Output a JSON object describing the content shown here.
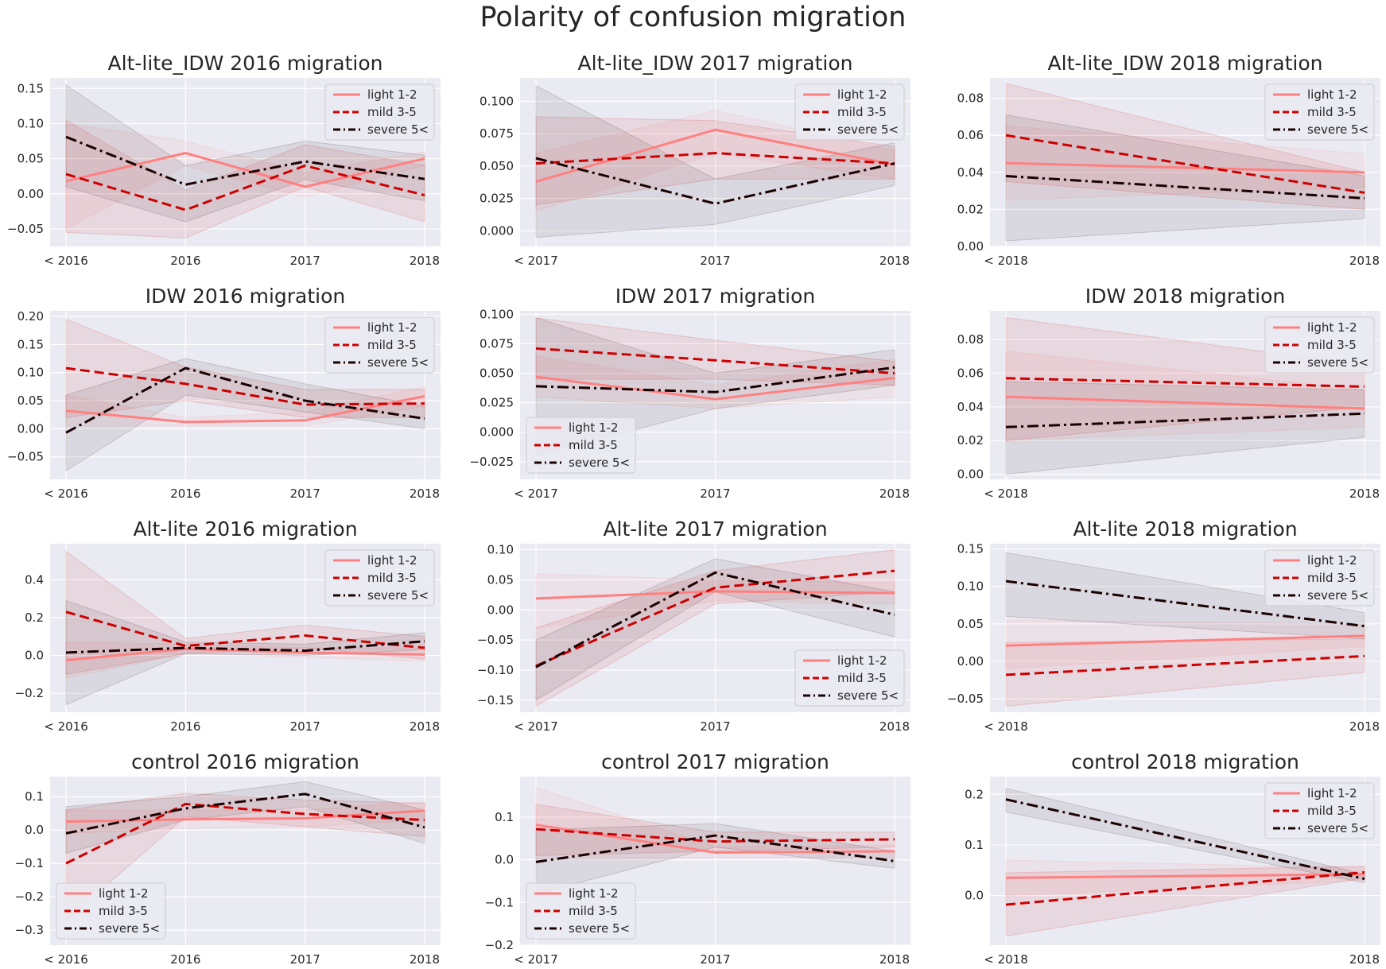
{
  "title": "Polarity of confusion migration",
  "legend_labels": [
    "light 1-2",
    "mild 3-5",
    "severe 5<"
  ],
  "series_styles": [
    {
      "name": "light 1-2",
      "color": "#ff8080",
      "dash": ""
    },
    {
      "name": "mild 3-5",
      "color": "#cc0000",
      "dash": "12,6"
    },
    {
      "name": "severe 5<",
      "color": "#1a0000",
      "dash": "14,5,3,5"
    }
  ],
  "chart_data": [
    {
      "type": "line",
      "title": "Alt-lite_IDW 2016 migration",
      "categories": [
        "< 2016",
        "2016",
        "2017",
        "2018"
      ],
      "ylim": [
        -0.075,
        0.165
      ],
      "yticks": [
        -0.05,
        0.0,
        0.05,
        0.1,
        0.15
      ],
      "ytick_labels": [
        "−0.05",
        "0.00",
        "0.05",
        "0.10",
        "0.15"
      ],
      "legend_pos": "top-right",
      "grid": true,
      "series": [
        {
          "name": "light 1-2",
          "values": [
            0.018,
            0.058,
            0.01,
            0.05
          ],
          "lower": [
            -0.05,
            0.04,
            -0.005,
            0.04
          ],
          "upper": [
            0.1,
            0.075,
            0.03,
            0.06
          ]
        },
        {
          "name": "mild 3-5",
          "values": [
            0.028,
            -0.023,
            0.04,
            -0.002
          ],
          "lower": [
            -0.055,
            -0.063,
            0.01,
            -0.04
          ],
          "upper": [
            0.105,
            0.005,
            0.07,
            0.04
          ]
        },
        {
          "name": "severe 5<",
          "values": [
            0.081,
            0.013,
            0.046,
            0.021
          ],
          "lower": [
            0.01,
            -0.04,
            0.02,
            -0.01
          ],
          "upper": [
            0.155,
            0.04,
            0.075,
            0.055
          ]
        }
      ]
    },
    {
      "type": "line",
      "title": "Alt-lite_IDW 2017 migration",
      "categories": [
        "< 2017",
        "2017",
        "2018"
      ],
      "ylim": [
        -0.012,
        0.118
      ],
      "yticks": [
        0.0,
        0.025,
        0.05,
        0.075,
        0.1
      ],
      "ytick_labels": [
        "0.000",
        "0.025",
        "0.050",
        "0.075",
        "0.100"
      ],
      "legend_pos": "top-right",
      "grid": true,
      "series": [
        {
          "name": "light 1-2",
          "values": [
            0.038,
            0.078,
            0.051
          ],
          "lower": [
            0.015,
            0.06,
            0.04
          ],
          "upper": [
            0.06,
            0.093,
            0.062
          ]
        },
        {
          "name": "mild 3-5",
          "values": [
            0.052,
            0.06,
            0.052
          ],
          "lower": [
            0.02,
            0.04,
            0.04
          ],
          "upper": [
            0.088,
            0.085,
            0.065
          ]
        },
        {
          "name": "severe 5<",
          "values": [
            0.056,
            0.021,
            0.052
          ],
          "lower": [
            -0.005,
            0.005,
            0.035
          ],
          "upper": [
            0.112,
            0.04,
            0.068
          ]
        }
      ]
    },
    {
      "type": "line",
      "title": "Alt-lite_IDW 2018 migration",
      "categories": [
        "< 2018",
        "2018"
      ],
      "ylim": [
        0.0,
        0.091
      ],
      "yticks": [
        0.0,
        0.02,
        0.04,
        0.06,
        0.08
      ],
      "ytick_labels": [
        "0.00",
        "0.02",
        "0.04",
        "0.06",
        "0.08"
      ],
      "legend_pos": "top-right",
      "grid": true,
      "series": [
        {
          "name": "light 1-2",
          "values": [
            0.045,
            0.04
          ],
          "lower": [
            0.025,
            0.032
          ],
          "upper": [
            0.065,
            0.05
          ]
        },
        {
          "name": "mild 3-5",
          "values": [
            0.06,
            0.029
          ],
          "lower": [
            0.035,
            0.02
          ],
          "upper": [
            0.088,
            0.04
          ]
        },
        {
          "name": "severe 5<",
          "values": [
            0.038,
            0.026
          ],
          "lower": [
            0.003,
            0.015
          ],
          "upper": [
            0.071,
            0.038
          ]
        }
      ]
    },
    {
      "type": "line",
      "title": "IDW 2016 migration",
      "categories": [
        "< 2016",
        "2016",
        "2017",
        "2018"
      ],
      "ylim": [
        -0.09,
        0.21
      ],
      "yticks": [
        -0.05,
        0.0,
        0.05,
        0.1,
        0.15,
        0.2
      ],
      "ytick_labels": [
        "−0.05",
        "0.00",
        "0.05",
        "0.10",
        "0.15",
        "0.20"
      ],
      "legend_pos": "top-right",
      "grid": true,
      "series": [
        {
          "name": "light 1-2",
          "values": [
            0.032,
            0.012,
            0.015,
            0.058
          ],
          "lower": [
            0.005,
            0.005,
            0.005,
            0.04
          ],
          "upper": [
            0.06,
            0.02,
            0.03,
            0.075
          ]
        },
        {
          "name": "mild 3-5",
          "values": [
            0.108,
            0.08,
            0.043,
            0.045
          ],
          "lower": [
            0.02,
            0.05,
            0.02,
            0.02
          ],
          "upper": [
            0.195,
            0.11,
            0.07,
            0.07
          ]
        },
        {
          "name": "severe 5<",
          "values": [
            -0.007,
            0.108,
            0.05,
            0.018
          ],
          "lower": [
            -0.075,
            0.06,
            0.03,
            0.0
          ],
          "upper": [
            0.06,
            0.125,
            0.08,
            0.04
          ]
        }
      ]
    },
    {
      "type": "line",
      "title": "IDW 2017 migration",
      "categories": [
        "< 2017",
        "2017",
        "2018"
      ],
      "ylim": [
        -0.04,
        0.103
      ],
      "yticks": [
        -0.025,
        0.0,
        0.025,
        0.05,
        0.075,
        0.1
      ],
      "ytick_labels": [
        "−0.025",
        "0.000",
        "0.025",
        "0.050",
        "0.075",
        "0.100"
      ],
      "legend_pos": "bottom-left",
      "grid": true,
      "series": [
        {
          "name": "light 1-2",
          "values": [
            0.047,
            0.028,
            0.046
          ],
          "lower": [
            0.03,
            0.02,
            0.03
          ],
          "upper": [
            0.065,
            0.04,
            0.062
          ]
        },
        {
          "name": "mild 3-5",
          "values": [
            0.071,
            0.061,
            0.05
          ],
          "lower": [
            0.045,
            0.045,
            0.04
          ],
          "upper": [
            0.097,
            0.078,
            0.06
          ]
        },
        {
          "name": "severe 5<",
          "values": [
            0.039,
            0.034,
            0.055
          ],
          "lower": [
            -0.02,
            0.02,
            0.04
          ],
          "upper": [
            0.097,
            0.05,
            0.07
          ]
        }
      ]
    },
    {
      "type": "line",
      "title": "IDW 2018 migration",
      "categories": [
        "< 2018",
        "2018"
      ],
      "ylim": [
        -0.003,
        0.097
      ],
      "yticks": [
        0.0,
        0.02,
        0.04,
        0.06,
        0.08
      ],
      "ytick_labels": [
        "0.00",
        "0.02",
        "0.04",
        "0.06",
        "0.08"
      ],
      "legend_pos": "top-right",
      "grid": true,
      "series": [
        {
          "name": "light 1-2",
          "values": [
            0.046,
            0.039
          ],
          "lower": [
            0.02,
            0.028
          ],
          "upper": [
            0.073,
            0.05
          ]
        },
        {
          "name": "mild 3-5",
          "values": [
            0.057,
            0.052
          ],
          "lower": [
            0.02,
            0.04
          ],
          "upper": [
            0.093,
            0.065
          ]
        },
        {
          "name": "severe 5<",
          "values": [
            0.028,
            0.036
          ],
          "lower": [
            0.0,
            0.022
          ],
          "upper": [
            0.055,
            0.05
          ]
        }
      ]
    },
    {
      "type": "line",
      "title": "Alt-lite 2016 migration",
      "categories": [
        "< 2016",
        "2016",
        "2017",
        "2018"
      ],
      "ylim": [
        -0.3,
        0.59
      ],
      "yticks": [
        -0.2,
        0.0,
        0.2,
        0.4
      ],
      "ytick_labels": [
        "−0.2",
        "0.0",
        "0.2",
        "0.4"
      ],
      "legend_pos": "top-right",
      "grid": true,
      "series": [
        {
          "name": "light 1-2",
          "values": [
            -0.025,
            0.035,
            0.015,
            0.005
          ],
          "lower": [
            -0.12,
            0.01,
            -0.01,
            -0.03
          ],
          "upper": [
            0.07,
            0.06,
            0.04,
            0.04
          ]
        },
        {
          "name": "mild 3-5",
          "values": [
            0.23,
            0.05,
            0.105,
            0.04
          ],
          "lower": [
            -0.1,
            0.01,
            0.04,
            -0.02
          ],
          "upper": [
            0.55,
            0.09,
            0.16,
            0.1
          ]
        },
        {
          "name": "severe 5<",
          "values": [
            0.015,
            0.04,
            0.025,
            0.075
          ],
          "lower": [
            -0.26,
            0.01,
            0.0,
            0.03
          ],
          "upper": [
            0.29,
            0.07,
            0.06,
            0.12
          ]
        }
      ]
    },
    {
      "type": "line",
      "title": "Alt-lite 2017 migration",
      "categories": [
        "< 2017",
        "2017",
        "2018"
      ],
      "ylim": [
        -0.17,
        0.11
      ],
      "yticks": [
        -0.15,
        -0.1,
        -0.05,
        0.0,
        0.05,
        0.1
      ],
      "ytick_labels": [
        "−0.15",
        "−0.10",
        "−0.05",
        "0.00",
        "0.05",
        "0.10"
      ],
      "legend_pos": "bottom-right",
      "grid": true,
      "series": [
        {
          "name": "light 1-2",
          "values": [
            0.019,
            0.031,
            0.028
          ],
          "lower": [
            -0.03,
            0.015,
            0.01
          ],
          "upper": [
            0.06,
            0.05,
            0.045
          ]
        },
        {
          "name": "mild 3-5",
          "values": [
            -0.093,
            0.037,
            0.065
          ],
          "lower": [
            -0.16,
            0.01,
            0.03
          ],
          "upper": [
            -0.03,
            0.065,
            0.1
          ]
        },
        {
          "name": "severe 5<",
          "values": [
            -0.095,
            0.062,
            -0.008
          ],
          "lower": [
            -0.15,
            0.03,
            -0.045
          ],
          "upper": [
            -0.05,
            0.085,
            0.03
          ]
        }
      ]
    },
    {
      "type": "line",
      "title": "Alt-lite 2018 migration",
      "categories": [
        "< 2018",
        "2018"
      ],
      "ylim": [
        -0.068,
        0.157
      ],
      "yticks": [
        -0.05,
        0.0,
        0.05,
        0.1,
        0.15
      ],
      "ytick_labels": [
        "−0.05",
        "0.00",
        "0.05",
        "0.10",
        "0.15"
      ],
      "legend_pos": "top-right",
      "grid": true,
      "series": [
        {
          "name": "light 1-2",
          "values": [
            0.021,
            0.034
          ],
          "lower": [
            -0.01,
            0.02
          ],
          "upper": [
            0.055,
            0.05
          ]
        },
        {
          "name": "mild 3-5",
          "values": [
            -0.018,
            0.007
          ],
          "lower": [
            -0.06,
            -0.015
          ],
          "upper": [
            0.025,
            0.03
          ]
        },
        {
          "name": "severe 5<",
          "values": [
            0.107,
            0.047
          ],
          "lower": [
            0.06,
            0.03
          ],
          "upper": [
            0.145,
            0.065
          ]
        }
      ]
    },
    {
      "type": "line",
      "title": "control 2016 migration",
      "categories": [
        "< 2016",
        "2016",
        "2017",
        "2018"
      ],
      "ylim": [
        -0.345,
        0.16
      ],
      "yticks": [
        -0.3,
        -0.2,
        -0.1,
        0.0,
        0.1
      ],
      "ytick_labels": [
        "−0.3",
        "−0.2",
        "−0.1",
        "0.0",
        "0.1"
      ],
      "legend_pos": "bottom-left",
      "grid": true,
      "series": [
        {
          "name": "light 1-2",
          "values": [
            0.025,
            0.032,
            0.035,
            0.058
          ],
          "lower": [
            -0.01,
            0.005,
            0.01,
            0.03
          ],
          "upper": [
            0.06,
            0.06,
            0.06,
            0.085
          ]
        },
        {
          "name": "mild 3-5",
          "values": [
            -0.1,
            0.078,
            0.048,
            0.03
          ],
          "lower": [
            -0.27,
            0.04,
            0.01,
            -0.02
          ],
          "upper": [
            0.06,
            0.11,
            0.09,
            0.08
          ]
        },
        {
          "name": "severe 5<",
          "values": [
            -0.01,
            0.065,
            0.108,
            0.008
          ],
          "lower": [
            -0.07,
            0.03,
            0.07,
            -0.04
          ],
          "upper": [
            0.07,
            0.1,
            0.145,
            0.06
          ]
        }
      ]
    },
    {
      "type": "line",
      "title": "control 2017 migration",
      "categories": [
        "< 2017",
        "2017",
        "2018"
      ],
      "ylim": [
        -0.2,
        0.195
      ],
      "yticks": [
        -0.2,
        -0.1,
        0.0,
        0.1
      ],
      "ytick_labels": [
        "−0.2",
        "−0.1",
        "0.0",
        "0.1"
      ],
      "legend_pos": "bottom-left",
      "grid": true,
      "series": [
        {
          "name": "light 1-2",
          "values": [
            0.082,
            0.017,
            0.02
          ],
          "lower": [
            0.0,
            0.005,
            0.005
          ],
          "upper": [
            0.17,
            0.03,
            0.035
          ]
        },
        {
          "name": "mild 3-5",
          "values": [
            0.072,
            0.043,
            0.048
          ],
          "lower": [
            0.01,
            0.02,
            0.03
          ],
          "upper": [
            0.13,
            0.065,
            0.065
          ]
        },
        {
          "name": "severe 5<",
          "values": [
            -0.005,
            0.057,
            -0.003
          ],
          "lower": [
            -0.08,
            0.03,
            -0.02
          ],
          "upper": [
            0.07,
            0.085,
            0.02
          ]
        }
      ]
    },
    {
      "type": "line",
      "title": "control 2018 migration",
      "categories": [
        "< 2018",
        "2018"
      ],
      "ylim": [
        -0.098,
        0.235
      ],
      "yticks": [
        0.0,
        0.1,
        0.2
      ],
      "ytick_labels": [
        "0.0",
        "0.1",
        "0.2"
      ],
      "legend_pos": "top-right",
      "grid": true,
      "series": [
        {
          "name": "light 1-2",
          "values": [
            0.035,
            0.042
          ],
          "lower": [
            0.0,
            0.03
          ],
          "upper": [
            0.07,
            0.055
          ]
        },
        {
          "name": "mild 3-5",
          "values": [
            -0.018,
            0.046
          ],
          "lower": [
            -0.08,
            0.035
          ],
          "upper": [
            0.045,
            0.058
          ]
        },
        {
          "name": "severe 5<",
          "values": [
            0.19,
            0.033
          ],
          "lower": [
            0.165,
            0.025
          ],
          "upper": [
            0.212,
            0.042
          ]
        }
      ]
    }
  ]
}
